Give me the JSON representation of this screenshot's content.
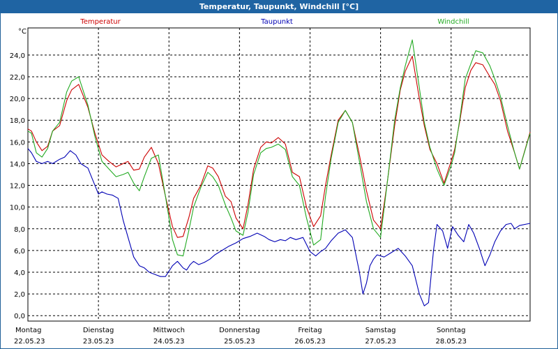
{
  "window": {
    "title": "Temperatur, Taupunkt, Windchill [°C]"
  },
  "chart_data": {
    "type": "line",
    "title": "Temperatur, Taupunkt, Windchill [°C]",
    "ylabel": "°C",
    "ylim": [
      -0.5,
      26.5
    ],
    "yticks": [
      "0,0",
      "2,0",
      "4,0",
      "6,0",
      "8,0",
      "10,0",
      "12,0",
      "14,0",
      "16,0",
      "18,0",
      "20,0",
      "22,0",
      "24,0"
    ],
    "xlim": [
      0,
      7.12
    ],
    "xticks": [
      {
        "day": "Montag",
        "date": "22.05.23"
      },
      {
        "day": "Dienstag",
        "date": "23.05.23"
      },
      {
        "day": "Mittwoch",
        "date": "24.05.23"
      },
      {
        "day": "Donnerstag",
        "date": "25.05.23"
      },
      {
        "day": "Freitag",
        "date": "26.05.23"
      },
      {
        "day": "Samstag",
        "date": "27.05.23"
      },
      {
        "day": "Sonntag",
        "date": "28.05.23"
      }
    ],
    "grid": true,
    "series": [
      {
        "name": "Temperatur",
        "color": "#cc0000",
        "x": [
          0,
          0.05,
          0.12,
          0.2,
          0.28,
          0.35,
          0.45,
          0.55,
          0.62,
          0.72,
          0.8,
          0.85,
          0.95,
          1.05,
          1.15,
          1.25,
          1.35,
          1.42,
          1.5,
          1.58,
          1.65,
          1.75,
          1.85,
          1.95,
          2.05,
          2.12,
          2.2,
          2.28,
          2.35,
          2.45,
          2.55,
          2.62,
          2.7,
          2.8,
          2.88,
          2.95,
          3.05,
          3.12,
          3.2,
          3.3,
          3.38,
          3.45,
          3.55,
          3.65,
          3.75,
          3.85,
          3.95,
          4.05,
          4.15,
          4.22,
          4.3,
          4.4,
          4.5,
          4.6,
          4.7,
          4.8,
          4.9,
          5.0,
          5.1,
          5.2,
          5.28,
          5.35,
          5.45,
          5.55,
          5.62,
          5.7,
          5.8,
          5.9,
          6.0,
          6.05,
          6.12,
          6.2,
          6.28,
          6.35,
          6.45,
          6.55,
          6.62,
          6.7,
          6.8,
          6.9,
          6.97
        ],
        "y": [
          17.2,
          17.0,
          16.0,
          15.2,
          15.6,
          17.0,
          17.5,
          19.8,
          20.8,
          21.3,
          20.0,
          19.2,
          16.8,
          14.8,
          14.2,
          13.7,
          14.0,
          14.2,
          13.4,
          13.5,
          14.6,
          15.5,
          14.0,
          11.0,
          8.2,
          7.2,
          7.3,
          9.0,
          10.8,
          12.0,
          13.8,
          13.6,
          12.8,
          11.0,
          10.5,
          9.0,
          8.0,
          10.2,
          13.5,
          15.5,
          16.0,
          15.9,
          16.4,
          15.8,
          13.2,
          12.8,
          10.0,
          8.2,
          9.2,
          12.0,
          14.8,
          18.0,
          18.9,
          17.8,
          14.8,
          11.5,
          8.8,
          8.0,
          12.5,
          17.5,
          20.8,
          22.5,
          23.9,
          20.0,
          17.5,
          15.3,
          14.0,
          12.2,
          14.2,
          15.3,
          17.8,
          21.0,
          22.6,
          23.3,
          23.1,
          22.0,
          21.3,
          19.8,
          17.0,
          15.0,
          13.5
        ],
        "yscaled_last": 16.9
      },
      {
        "name": "Taupunkt",
        "color": "#0000b4",
        "x": [
          0,
          0.05,
          0.12,
          0.2,
          0.28,
          0.35,
          0.45,
          0.52,
          0.6,
          0.68,
          0.75,
          0.8,
          0.85,
          0.9,
          0.95,
          1.0,
          1.05,
          1.12,
          1.2,
          1.28,
          1.35,
          1.42,
          1.5,
          1.58,
          1.65,
          1.72,
          1.8,
          1.88,
          1.95,
          2.05,
          2.12,
          2.2,
          2.25,
          2.3,
          2.35,
          2.42,
          2.5,
          2.58,
          2.65,
          2.75,
          2.85,
          2.95,
          3.05,
          3.15,
          3.25,
          3.35,
          3.42,
          3.5,
          3.58,
          3.65,
          3.72,
          3.8,
          3.9,
          4.0,
          4.08,
          4.15,
          4.22,
          4.3,
          4.4,
          4.5,
          4.6,
          4.7,
          4.75,
          4.8,
          4.85,
          4.9,
          4.95,
          5.05,
          5.15,
          5.25,
          5.35,
          5.45,
          5.55,
          5.62,
          5.68,
          5.75,
          5.8,
          5.88,
          5.95,
          6.02,
          6.1,
          6.18,
          6.25,
          6.32,
          6.4,
          6.48,
          6.55,
          6.62,
          6.7,
          6.78,
          6.85,
          6.9,
          6.97
        ],
        "y": [
          15.4,
          15.0,
          14.2,
          14.0,
          14.2,
          14.0,
          14.4,
          14.6,
          15.2,
          14.8,
          14.0,
          13.8,
          13.6,
          12.8,
          12.0,
          11.2,
          11.4,
          11.2,
          11.1,
          10.8,
          8.8,
          7.2,
          5.4,
          4.6,
          4.4,
          4.0,
          3.8,
          3.6,
          3.6,
          4.6,
          5.0,
          4.4,
          4.2,
          4.7,
          5.0,
          4.7,
          4.9,
          5.2,
          5.6,
          6.0,
          6.4,
          6.7,
          7.1,
          7.3,
          7.6,
          7.3,
          7.0,
          6.8,
          7.0,
          6.9,
          7.2,
          7.0,
          7.2,
          5.9,
          5.5,
          5.9,
          6.2,
          6.9,
          7.6,
          7.9,
          7.2,
          4.0,
          2.0,
          3.0,
          4.6,
          5.2,
          5.6,
          5.4,
          5.8,
          6.2,
          5.5,
          4.6,
          2.0,
          0.9,
          1.2,
          6.0,
          8.4,
          7.8,
          6.2,
          8.2,
          7.4,
          6.8,
          8.4,
          7.6,
          6.2,
          4.6,
          5.6,
          6.8,
          7.8,
          8.4,
          8.5,
          8.0,
          8.3
        ],
        "yscaled_last": 8.5
      },
      {
        "name": "Windchill",
        "color": "#22aa22",
        "x": [
          0,
          0.05,
          0.12,
          0.2,
          0.28,
          0.35,
          0.45,
          0.55,
          0.62,
          0.72,
          0.8,
          0.85,
          0.95,
          1.05,
          1.15,
          1.25,
          1.35,
          1.42,
          1.5,
          1.58,
          1.65,
          1.75,
          1.85,
          1.95,
          2.05,
          2.12,
          2.2,
          2.28,
          2.35,
          2.45,
          2.55,
          2.62,
          2.7,
          2.8,
          2.88,
          2.95,
          3.05,
          3.12,
          3.2,
          3.3,
          3.38,
          3.45,
          3.55,
          3.65,
          3.75,
          3.85,
          3.95,
          4.05,
          4.15,
          4.22,
          4.3,
          4.4,
          4.5,
          4.6,
          4.7,
          4.8,
          4.9,
          5.0,
          5.1,
          5.2,
          5.28,
          5.35,
          5.45,
          5.55,
          5.62,
          5.7,
          5.8,
          5.9,
          6.0,
          6.05,
          6.12,
          6.2,
          6.28,
          6.35,
          6.45,
          6.55,
          6.62,
          6.7,
          6.8,
          6.9,
          6.97
        ],
        "y": [
          17.0,
          16.8,
          15.0,
          14.6,
          15.4,
          17.0,
          17.8,
          20.6,
          21.6,
          22.0,
          20.4,
          19.4,
          16.5,
          14.2,
          13.5,
          12.8,
          13.0,
          13.2,
          12.2,
          11.5,
          12.8,
          14.5,
          14.8,
          11.0,
          7.0,
          5.6,
          5.5,
          7.8,
          10.0,
          11.8,
          13.2,
          12.8,
          12.0,
          10.2,
          9.0,
          7.8,
          7.4,
          9.5,
          13.0,
          15.0,
          15.4,
          15.5,
          15.8,
          15.3,
          12.8,
          12.0,
          9.0,
          6.5,
          7.0,
          11.0,
          14.5,
          17.8,
          18.9,
          17.8,
          14.2,
          10.5,
          8.0,
          7.2,
          12.5,
          18.0,
          21.0,
          23.0,
          25.4,
          21.0,
          17.8,
          15.5,
          13.5,
          12.0,
          13.8,
          15.0,
          18.0,
          21.8,
          23.2,
          24.4,
          24.2,
          23.0,
          21.8,
          20.2,
          17.5,
          15.0,
          13.5
        ],
        "yscaled_last": 16.8
      }
    ]
  }
}
